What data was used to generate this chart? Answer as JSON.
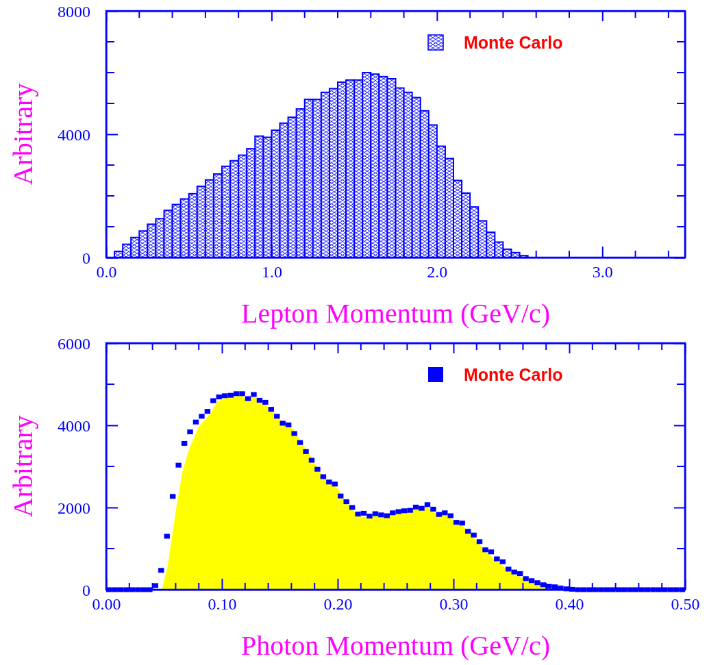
{
  "chart_data": [
    {
      "type": "histogram",
      "xlabel": "Lepton Momentum (GeV/c)",
      "ylabel": "Arbitrary",
      "xlim": [
        0,
        3.5
      ],
      "ylim": [
        0,
        8000
      ],
      "xticks": [
        {
          "value": 0,
          "label": "0.0"
        },
        {
          "value": 1,
          "label": "1.0"
        },
        {
          "value": 2,
          "label": "2.0"
        },
        {
          "value": 3,
          "label": "3.0"
        }
      ],
      "yticks": [
        0,
        4000,
        8000
      ],
      "grid": false,
      "legend": "top right",
      "bins": [
        0,
        0.05,
        0.1,
        0.15,
        0.2,
        0.25,
        0.3,
        0.35,
        0.4,
        0.45,
        0.5,
        0.55,
        0.6,
        0.65,
        0.7,
        0.75,
        0.8,
        0.85,
        0.9,
        0.95,
        1,
        1.05,
        1.1,
        1.15,
        1.2,
        1.25,
        1.3,
        1.35,
        1.4,
        1.45,
        1.5,
        1.55,
        1.6,
        1.65,
        1.7,
        1.75,
        1.8,
        1.85,
        1.9,
        1.95,
        2,
        2.05,
        2.1,
        2.15,
        2.2,
        2.25,
        2.3,
        2.35,
        2.4,
        2.45,
        2.5,
        2.55,
        2.6,
        2.65,
        2.7,
        2.75,
        2.8,
        2.85,
        2.9,
        2.95,
        3,
        3.05,
        3.1,
        3.15,
        3.2,
        3.25,
        3.3,
        3.35,
        3.4,
        3.45,
        3.5
      ],
      "series": [
        {
          "name": "Monte Carlo",
          "color": "#0000ff",
          "values": [
            0,
            200,
            430,
            650,
            860,
            1080,
            1260,
            1530,
            1720,
            1900,
            2070,
            2310,
            2520,
            2710,
            2960,
            3140,
            3320,
            3530,
            3940,
            3900,
            4130,
            4360,
            4550,
            4820,
            5130,
            5130,
            5360,
            5480,
            5690,
            5760,
            5760,
            6000,
            5950,
            5870,
            5800,
            5500,
            5360,
            5190,
            4760,
            4300,
            3610,
            3210,
            2500,
            2090,
            1640,
            1190,
            820,
            500,
            270,
            160,
            60,
            0,
            0,
            0,
            0,
            0,
            0,
            0,
            0,
            0,
            0,
            0,
            0,
            0,
            0,
            0,
            0,
            0,
            0,
            0
          ]
        }
      ]
    },
    {
      "type": "scatter",
      "xlabel": "Photon Momentum (GeV/c)",
      "ylabel": "Arbitrary",
      "xlim": [
        0,
        0.5
      ],
      "ylim": [
        0,
        6000
      ],
      "xticks": [
        {
          "value": 0,
          "label": "0.00"
        },
        {
          "value": 0.1,
          "label": "0.10"
        },
        {
          "value": 0.2,
          "label": "0.20"
        },
        {
          "value": 0.3,
          "label": "0.30"
        },
        {
          "value": 0.4,
          "label": "0.40"
        },
        {
          "value": 0.5,
          "label": "0.50"
        }
      ],
      "yticks": [
        0,
        2000,
        4000,
        6000
      ],
      "grid": false,
      "legend": "top right",
      "series": [
        {
          "type": "area",
          "color": "#ffff00",
          "x": [
            0.048,
            0.053,
            0.06,
            0.066,
            0.072,
            0.08,
            0.09,
            0.096,
            0.106,
            0.117,
            0.122,
            0.127,
            0.137,
            0.153,
            0.161,
            0.175,
            0.183,
            0.188,
            0.2,
            0.204,
            0.217,
            0.228,
            0.233,
            0.243,
            0.248,
            0.263,
            0.267,
            0.272,
            0.277,
            0.287,
            0.292,
            0.301,
            0.307,
            0.319,
            0.328,
            0.338,
            0.347,
            0.36,
            0.38,
            0.386
          ],
          "values": [
            0,
            560,
            1890,
            2890,
            3440,
            3970,
            4280,
            4580,
            4690,
            4730,
            4610,
            4710,
            4530,
            4060,
            3920,
            3330,
            2940,
            2720,
            2470,
            2250,
            1800,
            1750,
            1830,
            1770,
            1860,
            1920,
            2000,
            1970,
            2030,
            1800,
            1860,
            1670,
            1580,
            1220,
            920,
            690,
            470,
            280,
            80,
            0
          ]
        },
        {
          "name": "Monte Carlo",
          "color": "#0000ff",
          "marker": "square",
          "x": [
            0.0025,
            0.0075,
            0.0125,
            0.0175,
            0.0225,
            0.0275,
            0.0325,
            0.0375,
            0.0425,
            0.0475,
            0.0525,
            0.0575,
            0.0625,
            0.0675,
            0.0725,
            0.0775,
            0.0825,
            0.0875,
            0.0925,
            0.0975,
            0.1025,
            0.1075,
            0.1125,
            0.1175,
            0.1225,
            0.1275,
            0.1325,
            0.1375,
            0.1425,
            0.1475,
            0.1525,
            0.1575,
            0.1625,
            0.1675,
            0.1725,
            0.1775,
            0.1825,
            0.1875,
            0.1925,
            0.1975,
            0.2025,
            0.2075,
            0.2125,
            0.2175,
            0.2225,
            0.2275,
            0.2325,
            0.2375,
            0.2425,
            0.2475,
            0.2525,
            0.2575,
            0.2625,
            0.2675,
            0.2725,
            0.2775,
            0.2825,
            0.2875,
            0.2925,
            0.2975,
            0.3025,
            0.3075,
            0.3125,
            0.3175,
            0.3225,
            0.3275,
            0.3325,
            0.3375,
            0.3425,
            0.3475,
            0.3525,
            0.3575,
            0.3625,
            0.3675,
            0.3725,
            0.3775,
            0.3825,
            0.3875,
            0.3925,
            0.3975,
            0.4025,
            0.4075,
            0.4125,
            0.4175,
            0.4225,
            0.4275,
            0.4325,
            0.4375,
            0.4425,
            0.4475,
            0.4525,
            0.4575,
            0.4625,
            0.4675,
            0.4725,
            0.4775,
            0.4825,
            0.4875,
            0.4925,
            0.4975
          ],
          "values": [
            0,
            0,
            0,
            0,
            0,
            0,
            0,
            0,
            100,
            470,
            1300,
            2270,
            3030,
            3560,
            3840,
            4080,
            4220,
            4340,
            4600,
            4690,
            4720,
            4730,
            4770,
            4770,
            4650,
            4750,
            4610,
            4560,
            4390,
            4220,
            4050,
            4010,
            3800,
            3580,
            3360,
            3150,
            2930,
            2750,
            2620,
            2570,
            2280,
            2140,
            2000,
            1840,
            1860,
            1790,
            1850,
            1820,
            1800,
            1870,
            1900,
            1920,
            1930,
            2010,
            1980,
            2070,
            1960,
            1830,
            1870,
            1800,
            1640,
            1620,
            1420,
            1330,
            1170,
            970,
            920,
            750,
            680,
            500,
            430,
            390,
            270,
            220,
            170,
            120,
            80,
            70,
            40,
            20,
            10,
            0,
            0,
            0,
            0,
            0,
            0,
            0,
            0,
            0,
            0,
            0,
            0,
            0,
            0,
            0,
            0,
            0,
            0,
            0
          ]
        }
      ]
    }
  ]
}
